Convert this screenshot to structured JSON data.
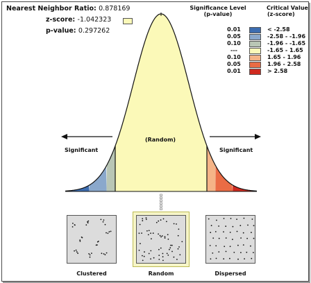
{
  "stats": {
    "ratio_label": "Nearest Neighbor Ratio:",
    "ratio_value": "0.878169",
    "z_label": "z-score:",
    "z_value": "-1.042323",
    "p_label": "p-value:",
    "p_value": "0.297262"
  },
  "legend": {
    "sig_header_line1": "Significance Level",
    "sig_header_line2": "(p-value)",
    "crit_header_line1": "Critical Value",
    "crit_header_line2": "(z-score)",
    "rows": [
      {
        "p": "0.01",
        "z": "< -2.58",
        "color": "#3d6db0"
      },
      {
        "p": "0.05",
        "z": "-2.58 - -1.96",
        "color": "#8aa8cc"
      },
      {
        "p": "0.10",
        "z": "-1.96 - -1.65",
        "color": "#b9c6b5"
      },
      {
        "p": "---",
        "z": "-1.65 - 1.65",
        "color": "#fbf9b8"
      },
      {
        "p": "0.10",
        "z": "1.65 - 1.96",
        "color": "#f5b487"
      },
      {
        "p": "0.05",
        "z": "1.96 - 2.58",
        "color": "#ea6c45"
      },
      {
        "p": "0.01",
        "z": "> 2.58",
        "color": "#cf2a1f"
      }
    ]
  },
  "curve": {
    "random_label": "(Random)",
    "left_label": "Significant",
    "right_label": "Significant",
    "z_score": -1.042323
  },
  "patterns": [
    {
      "label": "Clustered",
      "selected": false
    },
    {
      "label": "Random",
      "selected": true
    },
    {
      "label": "Dispersed",
      "selected": false
    }
  ]
}
